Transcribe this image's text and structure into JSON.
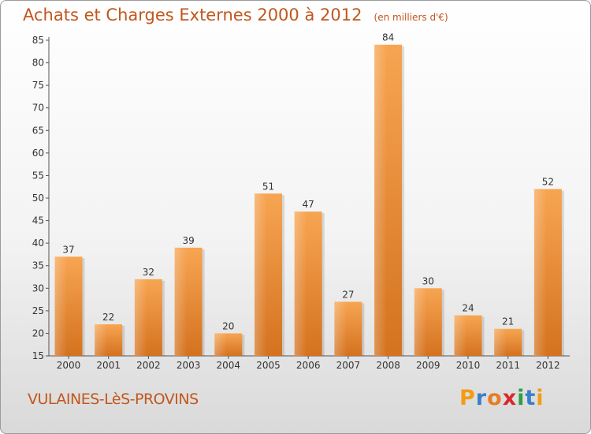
{
  "header": {
    "title": "Achats et Charges Externes 2000 à 2012",
    "subtitle": "(en milliers d'€)"
  },
  "footer": {
    "city": "VULAINES-LèS-PROVINS",
    "logo_text": "Proxiti",
    "logo_colors": [
      "#f39c12",
      "#3a7fc8",
      "#e67e22",
      "#d8282c",
      "#2e9e44",
      "#3a7fc8",
      "#f39c12"
    ]
  },
  "colors": {
    "bar_top": "#f7a552",
    "bar_bottom": "#d4721f",
    "text": "#333333",
    "accent": "#c0571e"
  },
  "chart_data": {
    "type": "bar",
    "categories": [
      "2000",
      "2001",
      "2002",
      "2003",
      "2004",
      "2005",
      "2006",
      "2007",
      "2008",
      "2009",
      "2010",
      "2011",
      "2012"
    ],
    "values": [
      37,
      22,
      32,
      39,
      20,
      51,
      47,
      27,
      84,
      30,
      24,
      21,
      52
    ],
    "title": "Achats et Charges Externes 2000 à 2012",
    "ylim": [
      15,
      85
    ],
    "yticks": [
      15,
      20,
      25,
      30,
      35,
      40,
      45,
      50,
      55,
      60,
      65,
      70,
      75,
      80,
      85
    ],
    "grid": false,
    "data_labels": true
  }
}
